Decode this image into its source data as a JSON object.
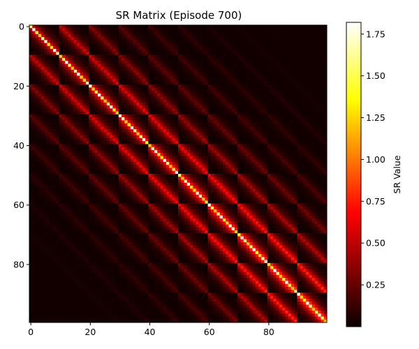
{
  "chart_data": {
    "type": "heatmap",
    "title": "SR Matrix (Episode 700)",
    "xlabel": "",
    "ylabel": "",
    "shape": [
      100,
      100
    ],
    "grid_structure": "10x10 grid world, state index = row*10 + col",
    "x_ticks": [
      0,
      20,
      40,
      60,
      80
    ],
    "y_ticks": [
      0,
      20,
      40,
      60,
      80
    ],
    "colormap": "hot",
    "colorbar": {
      "label": "SR Value",
      "vmin": 0.0,
      "vmax": 1.82,
      "ticks": [
        "0.25",
        "0.50",
        "0.75",
        "1.00",
        "1.25",
        "1.50",
        "1.75"
      ]
    },
    "diagonal_value_range": [
      1.2,
      1.82
    ],
    "neighbor_value_approx": 0.6,
    "background_value_approx": 0.02
  }
}
